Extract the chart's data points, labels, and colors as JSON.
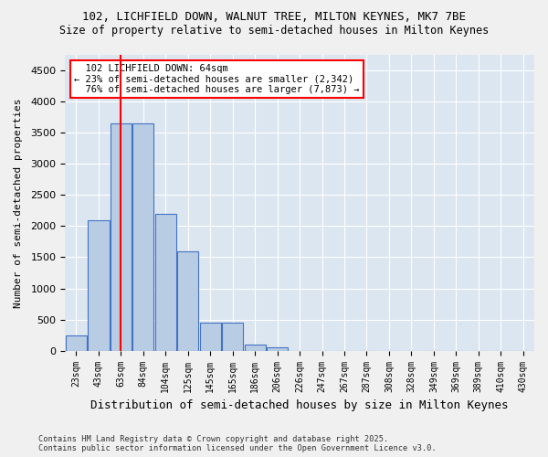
{
  "title_line1": "102, LICHFIELD DOWN, WALNUT TREE, MILTON KEYNES, MK7 7BE",
  "title_line2": "Size of property relative to semi-detached houses in Milton Keynes",
  "xlabel": "Distribution of semi-detached houses by size in Milton Keynes",
  "ylabel": "Number of semi-detached properties",
  "footnote": "Contains HM Land Registry data © Crown copyright and database right 2025.\nContains public sector information licensed under the Open Government Licence v3.0.",
  "bin_labels": [
    "23sqm",
    "43sqm",
    "63sqm",
    "84sqm",
    "104sqm",
    "125sqm",
    "145sqm",
    "165sqm",
    "186sqm",
    "206sqm",
    "226sqm",
    "247sqm",
    "267sqm",
    "287sqm",
    "308sqm",
    "328sqm",
    "349sqm",
    "369sqm",
    "389sqm",
    "410sqm",
    "430sqm"
  ],
  "bar_values": [
    250,
    2100,
    3650,
    3650,
    2200,
    1600,
    450,
    450,
    100,
    60,
    0,
    0,
    0,
    0,
    0,
    0,
    0,
    0,
    0,
    0,
    0
  ],
  "bar_color": "#b8cce4",
  "bar_edge_color": "#4472c4",
  "property_sqm": 64,
  "property_label": "102 LICHFIELD DOWN: 64sqm",
  "pct_smaller": 23,
  "pct_larger": 76,
  "n_smaller": 2342,
  "n_larger": 7873,
  "vline_x_index": 2.0,
  "ylim": [
    0,
    4750
  ],
  "yticks": [
    0,
    500,
    1000,
    1500,
    2000,
    2500,
    3000,
    3500,
    4000,
    4500
  ],
  "bg_color": "#dce6f1",
  "grid_color": "#ffffff",
  "fig_bg_color": "#f0f0f0"
}
